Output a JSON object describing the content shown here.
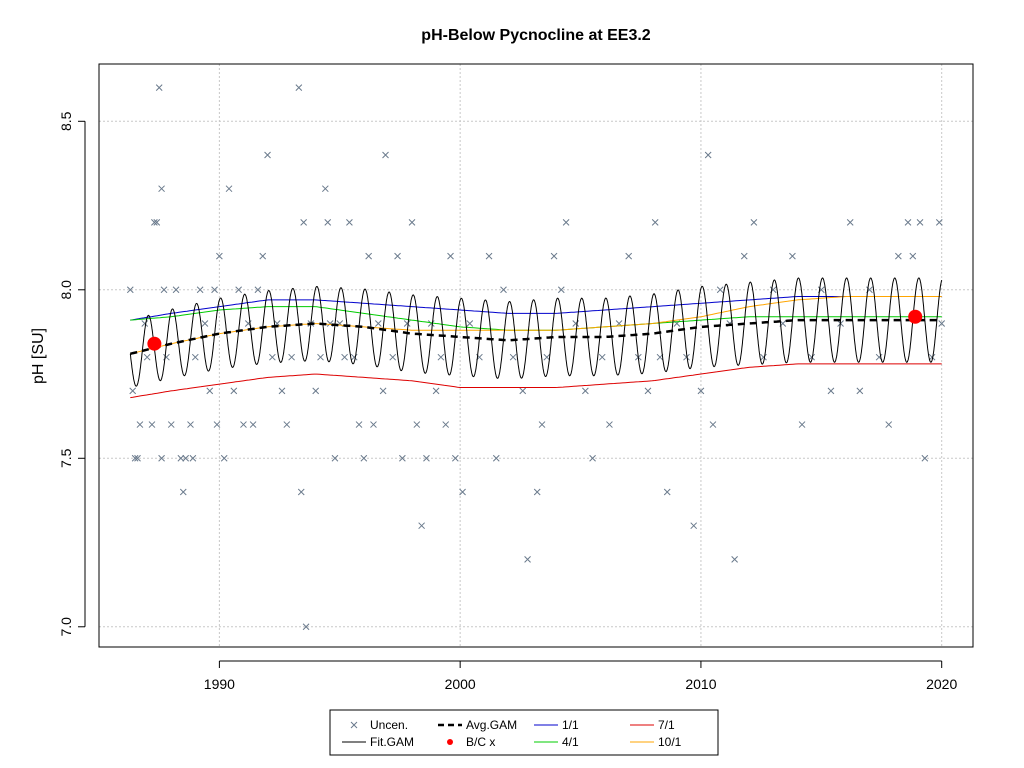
{
  "chart_data": {
    "type": "scatter",
    "title": "pH-Below Pycnocline at EE3.2",
    "xlabel": "",
    "ylabel": "pH [SU]",
    "xlim": [
      1985.0,
      2021.3
    ],
    "ylim": [
      6.94,
      8.67
    ],
    "x_ticks": [
      1990,
      2000,
      2010,
      2020
    ],
    "x_tick_labels": [
      "1990",
      "2000",
      "2010",
      "2020"
    ],
    "y_ticks": [
      7.0,
      7.5,
      8.0,
      8.5
    ],
    "y_tick_labels": [
      "7.0",
      "7.5",
      "8.0",
      "8.5"
    ],
    "grid": true,
    "legend_position": "bottom-center",
    "colors": {
      "uncen": "#6a7a8c",
      "fit_gam": "#000000",
      "avg_gam": "#000000",
      "bc": "#ff0000",
      "s1_1": "#0000cc",
      "s4_1": "#00cc00",
      "s7_1": "#dd0000",
      "s10_1": "#ffa500"
    },
    "uncensored_points": [
      [
        1986.3,
        8.0
      ],
      [
        1986.4,
        7.7
      ],
      [
        1986.5,
        7.5
      ],
      [
        1986.6,
        7.5
      ],
      [
        1986.7,
        7.6
      ],
      [
        1986.9,
        7.9
      ],
      [
        1987.0,
        7.8
      ],
      [
        1987.2,
        7.6
      ],
      [
        1987.3,
        8.2
      ],
      [
        1987.4,
        8.2
      ],
      [
        1987.5,
        8.6
      ],
      [
        1987.6,
        8.3
      ],
      [
        1987.6,
        7.5
      ],
      [
        1987.7,
        8.0
      ],
      [
        1987.8,
        7.8
      ],
      [
        1988.0,
        7.6
      ],
      [
        1988.2,
        8.0
      ],
      [
        1988.4,
        7.5
      ],
      [
        1988.5,
        7.4
      ],
      [
        1988.6,
        7.5
      ],
      [
        1988.8,
        7.6
      ],
      [
        1988.9,
        7.5
      ],
      [
        1989.0,
        7.8
      ],
      [
        1989.2,
        8.0
      ],
      [
        1989.4,
        7.9
      ],
      [
        1989.6,
        7.7
      ],
      [
        1989.8,
        8.0
      ],
      [
        1989.9,
        7.6
      ],
      [
        1990.0,
        8.1
      ],
      [
        1990.2,
        7.5
      ],
      [
        1990.4,
        8.3
      ],
      [
        1990.6,
        7.7
      ],
      [
        1990.8,
        8.0
      ],
      [
        1991.0,
        7.6
      ],
      [
        1991.2,
        7.9
      ],
      [
        1991.4,
        7.6
      ],
      [
        1991.6,
        8.0
      ],
      [
        1991.8,
        8.1
      ],
      [
        1992.0,
        8.4
      ],
      [
        1992.2,
        7.8
      ],
      [
        1992.4,
        7.9
      ],
      [
        1992.6,
        7.7
      ],
      [
        1992.8,
        7.6
      ],
      [
        1993.0,
        7.8
      ],
      [
        1993.3,
        8.6
      ],
      [
        1993.4,
        7.4
      ],
      [
        1993.5,
        8.2
      ],
      [
        1993.6,
        7.0
      ],
      [
        1993.8,
        7.9
      ],
      [
        1994.0,
        7.7
      ],
      [
        1994.2,
        7.8
      ],
      [
        1994.4,
        8.3
      ],
      [
        1994.5,
        8.2
      ],
      [
        1994.6,
        7.9
      ],
      [
        1994.8,
        7.5
      ],
      [
        1995.0,
        7.9
      ],
      [
        1995.2,
        7.8
      ],
      [
        1995.4,
        8.2
      ],
      [
        1995.6,
        7.8
      ],
      [
        1995.8,
        7.6
      ],
      [
        1996.0,
        7.5
      ],
      [
        1996.2,
        8.1
      ],
      [
        1996.4,
        7.6
      ],
      [
        1996.6,
        7.9
      ],
      [
        1996.8,
        7.7
      ],
      [
        1996.9,
        8.4
      ],
      [
        1997.2,
        7.8
      ],
      [
        1997.4,
        8.1
      ],
      [
        1997.6,
        7.5
      ],
      [
        1997.8,
        7.9
      ],
      [
        1998.0,
        8.2
      ],
      [
        1998.2,
        7.6
      ],
      [
        1998.4,
        7.3
      ],
      [
        1998.6,
        7.5
      ],
      [
        1998.8,
        7.9
      ],
      [
        1999.0,
        7.7
      ],
      [
        1999.2,
        7.8
      ],
      [
        1999.4,
        7.6
      ],
      [
        1999.6,
        8.1
      ],
      [
        1999.8,
        7.5
      ],
      [
        2000.1,
        7.4
      ],
      [
        2000.4,
        7.9
      ],
      [
        2000.8,
        7.8
      ],
      [
        2001.2,
        8.1
      ],
      [
        2001.5,
        7.5
      ],
      [
        2001.8,
        8.0
      ],
      [
        2002.2,
        7.8
      ],
      [
        2002.6,
        7.7
      ],
      [
        2002.8,
        7.2
      ],
      [
        2003.2,
        7.4
      ],
      [
        2003.4,
        7.6
      ],
      [
        2003.6,
        7.8
      ],
      [
        2003.9,
        8.1
      ],
      [
        2004.2,
        8.0
      ],
      [
        2004.4,
        8.2
      ],
      [
        2004.8,
        7.9
      ],
      [
        2005.2,
        7.7
      ],
      [
        2005.5,
        7.5
      ],
      [
        2005.9,
        7.8
      ],
      [
        2006.2,
        7.6
      ],
      [
        2006.6,
        7.9
      ],
      [
        2007.0,
        8.1
      ],
      [
        2007.4,
        7.8
      ],
      [
        2007.8,
        7.7
      ],
      [
        2008.1,
        8.2
      ],
      [
        2008.3,
        7.8
      ],
      [
        2008.6,
        7.4
      ],
      [
        2009.0,
        7.9
      ],
      [
        2009.4,
        7.8
      ],
      [
        2009.7,
        7.3
      ],
      [
        2010.0,
        7.7
      ],
      [
        2010.3,
        8.4
      ],
      [
        2010.5,
        7.6
      ],
      [
        2010.8,
        8.0
      ],
      [
        2011.2,
        7.9
      ],
      [
        2011.4,
        7.2
      ],
      [
        2011.8,
        8.1
      ],
      [
        2012.2,
        8.2
      ],
      [
        2012.6,
        7.8
      ],
      [
        2013.0,
        8.0
      ],
      [
        2013.4,
        7.9
      ],
      [
        2013.8,
        8.1
      ],
      [
        2014.2,
        7.6
      ],
      [
        2014.6,
        7.8
      ],
      [
        2015.0,
        8.0
      ],
      [
        2015.4,
        7.7
      ],
      [
        2015.8,
        7.9
      ],
      [
        2016.2,
        8.2
      ],
      [
        2016.6,
        7.7
      ],
      [
        2017.0,
        8.0
      ],
      [
        2017.4,
        7.8
      ],
      [
        2017.8,
        7.6
      ],
      [
        2018.2,
        8.1
      ],
      [
        2018.6,
        8.2
      ],
      [
        2018.8,
        8.1
      ],
      [
        2019.1,
        8.2
      ],
      [
        2019.3,
        7.5
      ],
      [
        2019.6,
        7.8
      ],
      [
        2019.9,
        8.2
      ],
      [
        2020.0,
        7.9
      ]
    ],
    "fit_gam": {
      "mean_x": [
        1986.3,
        1988,
        1990,
        1992,
        1994,
        1996,
        1998,
        2000,
        2002,
        2004,
        2006,
        2008,
        2010,
        2012,
        2014,
        2016,
        2018,
        2020.0
      ],
      "mean_y": [
        7.81,
        7.84,
        7.87,
        7.89,
        7.9,
        7.89,
        7.87,
        7.86,
        7.85,
        7.86,
        7.86,
        7.87,
        7.89,
        7.9,
        7.91,
        7.91,
        7.91,
        7.91
      ],
      "amp_x": [
        1986.3,
        1990,
        1994,
        1998,
        2002,
        2006,
        2010,
        2014,
        2018,
        2020.0
      ],
      "amp_y": [
        0.1,
        0.105,
        0.11,
        0.115,
        0.115,
        0.115,
        0.12,
        0.125,
        0.125,
        0.125
      ]
    },
    "avg_gam": {
      "x": [
        1986.3,
        1988,
        1990,
        1992,
        1994,
        1996,
        1998,
        2000,
        2002,
        2004,
        2006,
        2008,
        2010,
        2012,
        2014,
        2016,
        2018,
        2020.0
      ],
      "y": [
        7.81,
        7.84,
        7.87,
        7.89,
        7.9,
        7.89,
        7.87,
        7.86,
        7.85,
        7.86,
        7.86,
        7.87,
        7.89,
        7.9,
        7.91,
        7.91,
        7.91,
        7.91
      ]
    },
    "series": [
      {
        "name": "1/1",
        "x": [
          1986.3,
          1988,
          1990,
          1992,
          1994,
          1996,
          1998,
          2000,
          2002,
          2004,
          2006,
          2008,
          2010,
          2012,
          2014,
          2016,
          2018,
          2020.0
        ],
        "y": [
          7.91,
          7.93,
          7.95,
          7.97,
          7.97,
          7.96,
          7.95,
          7.94,
          7.93,
          7.93,
          7.94,
          7.95,
          7.96,
          7.97,
          7.98,
          7.98,
          7.98,
          7.98
        ]
      },
      {
        "name": "4/1",
        "x": [
          1986.3,
          1988,
          1990,
          1992,
          1994,
          1996,
          1998,
          2000,
          2002,
          2004,
          2006,
          2008,
          2010,
          2012,
          2014,
          2016,
          2018,
          2020.0
        ],
        "y": [
          7.91,
          7.92,
          7.94,
          7.95,
          7.95,
          7.93,
          7.91,
          7.89,
          7.88,
          7.88,
          7.89,
          7.9,
          7.91,
          7.92,
          7.92,
          7.92,
          7.92,
          7.92
        ]
      },
      {
        "name": "7/1",
        "x": [
          1986.3,
          1988,
          1990,
          1992,
          1994,
          1996,
          1998,
          2000,
          2002,
          2004,
          2006,
          2008,
          2010,
          2012,
          2014,
          2016,
          2018,
          2020.0
        ],
        "y": [
          7.68,
          7.7,
          7.72,
          7.74,
          7.75,
          7.74,
          7.73,
          7.71,
          7.71,
          7.71,
          7.72,
          7.73,
          7.75,
          7.77,
          7.78,
          7.78,
          7.78,
          7.78
        ]
      },
      {
        "name": "10/1",
        "x": [
          1986.3,
          1988,
          1990,
          1992,
          1994,
          1996,
          1998,
          2000,
          2002,
          2004,
          2006,
          2008,
          2010,
          2012,
          2014,
          2016,
          2018,
          2020.0
        ],
        "y": [
          7.81,
          7.84,
          7.87,
          7.89,
          7.9,
          7.89,
          7.88,
          7.88,
          7.88,
          7.88,
          7.89,
          7.9,
          7.92,
          7.95,
          7.97,
          7.98,
          7.98,
          7.98
        ]
      }
    ],
    "bc_points": [
      [
        1987.3,
        7.84
      ],
      [
        2018.9,
        7.92
      ]
    ],
    "legend": {
      "items": [
        {
          "label": "Uncen.",
          "kind": "cross",
          "color_key": "uncen"
        },
        {
          "label": "Fit.GAM",
          "kind": "line",
          "color_key": "fit_gam"
        },
        {
          "label": "Avg.GAM",
          "kind": "dashed",
          "color_key": "avg_gam"
        },
        {
          "label": "B/C x",
          "kind": "dot",
          "color_key": "bc"
        },
        {
          "label": "1/1",
          "kind": "line",
          "color_key": "s1_1"
        },
        {
          "label": "4/1",
          "kind": "line",
          "color_key": "s4_1"
        },
        {
          "label": "7/1",
          "kind": "line",
          "color_key": "s7_1"
        },
        {
          "label": "10/1",
          "kind": "line",
          "color_key": "s10_1"
        }
      ]
    }
  }
}
